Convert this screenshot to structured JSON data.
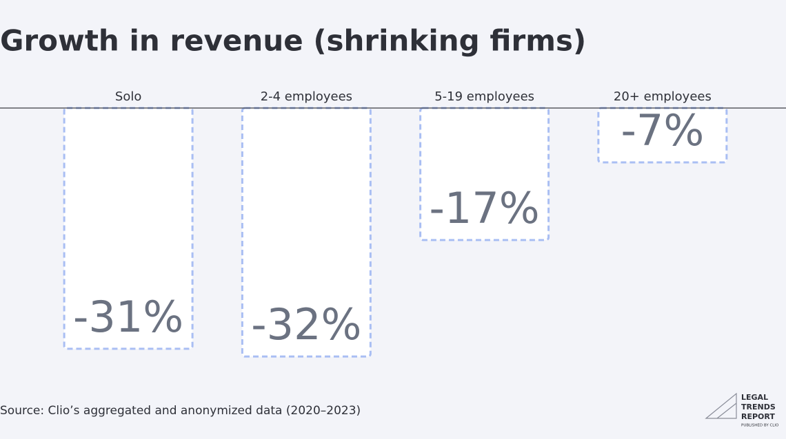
{
  "chart_data": {
    "type": "bar",
    "title": "Growth in revenue (shrinking firms)",
    "categories": [
      "Solo",
      "2-4 employees",
      "5-19 employees",
      "20+ employees"
    ],
    "values": [
      -31,
      -32,
      -17,
      -7
    ],
    "value_labels": [
      "-31%",
      "-32%",
      "-17%",
      "-7%"
    ],
    "color": "#ffffff",
    "edge_color": "#a9bef3",
    "ylim": [
      -35,
      0
    ],
    "source": "Source: Clio’s aggregated and anonymized data (2020–2023)"
  },
  "logo": {
    "lines": [
      "LEGAL",
      "TRENDS",
      "REPORT"
    ],
    "tagline": "PUBLISHED BY CLIO"
  }
}
